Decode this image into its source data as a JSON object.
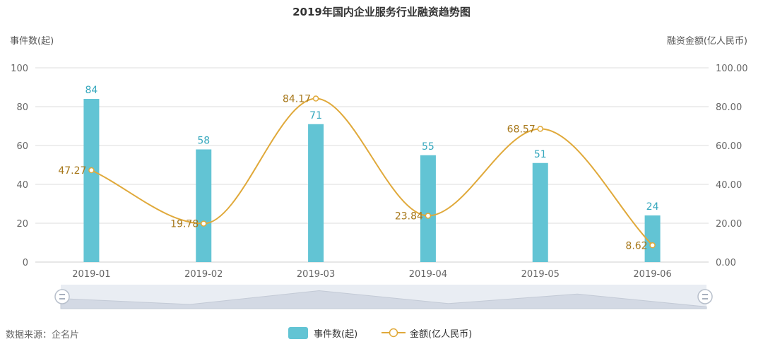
{
  "chart_data": {
    "type": "bar+line",
    "title": "2019年国内企业服务行业融资趋势图",
    "categories": [
      "2019-01",
      "2019-02",
      "2019-03",
      "2019-04",
      "2019-05",
      "2019-06"
    ],
    "series": [
      {
        "name": "事件数(起)",
        "type": "bar",
        "axis": "left",
        "color": "#62c4d4",
        "label_color": "#35a7bd",
        "values": [
          84,
          58,
          71,
          55,
          51,
          24
        ],
        "labels": [
          "84",
          "58",
          "71",
          "55",
          "51",
          "24"
        ]
      },
      {
        "name": "金额(亿人民币)",
        "type": "line",
        "smooth": true,
        "axis": "right",
        "color": "#e0a93a",
        "label_color": "#a7781b",
        "values": [
          47.27,
          19.78,
          84.17,
          23.84,
          68.57,
          8.62
        ],
        "labels": [
          "47.27",
          "19.78",
          "84.17",
          "23.84",
          "68.57",
          "8.62"
        ]
      }
    ],
    "y_left": {
      "label": "事件数(起)",
      "range": [
        0,
        100
      ],
      "ticks": [
        0,
        20,
        40,
        60,
        80,
        100
      ],
      "tick_labels": [
        "0",
        "20",
        "40",
        "60",
        "80",
        "100"
      ]
    },
    "y_right": {
      "label": "融资金额(亿人民币)",
      "range": [
        0,
        100
      ],
      "ticks": [
        0,
        20,
        40,
        60,
        80,
        100
      ],
      "tick_labels": [
        "0.00",
        "20.00",
        "40.00",
        "60.00",
        "80.00",
        "100.00"
      ]
    },
    "grid": true,
    "legend": "bottom-center",
    "source": "数据来源：企名片",
    "colors": {
      "gridline": "#dcdcdc",
      "axis_text": "#666666",
      "title_text": "#333333",
      "zoom_track": "#e9edf3",
      "zoom_fill": "#d3d9e4",
      "zoom_handle": "#8a96a8"
    }
  }
}
